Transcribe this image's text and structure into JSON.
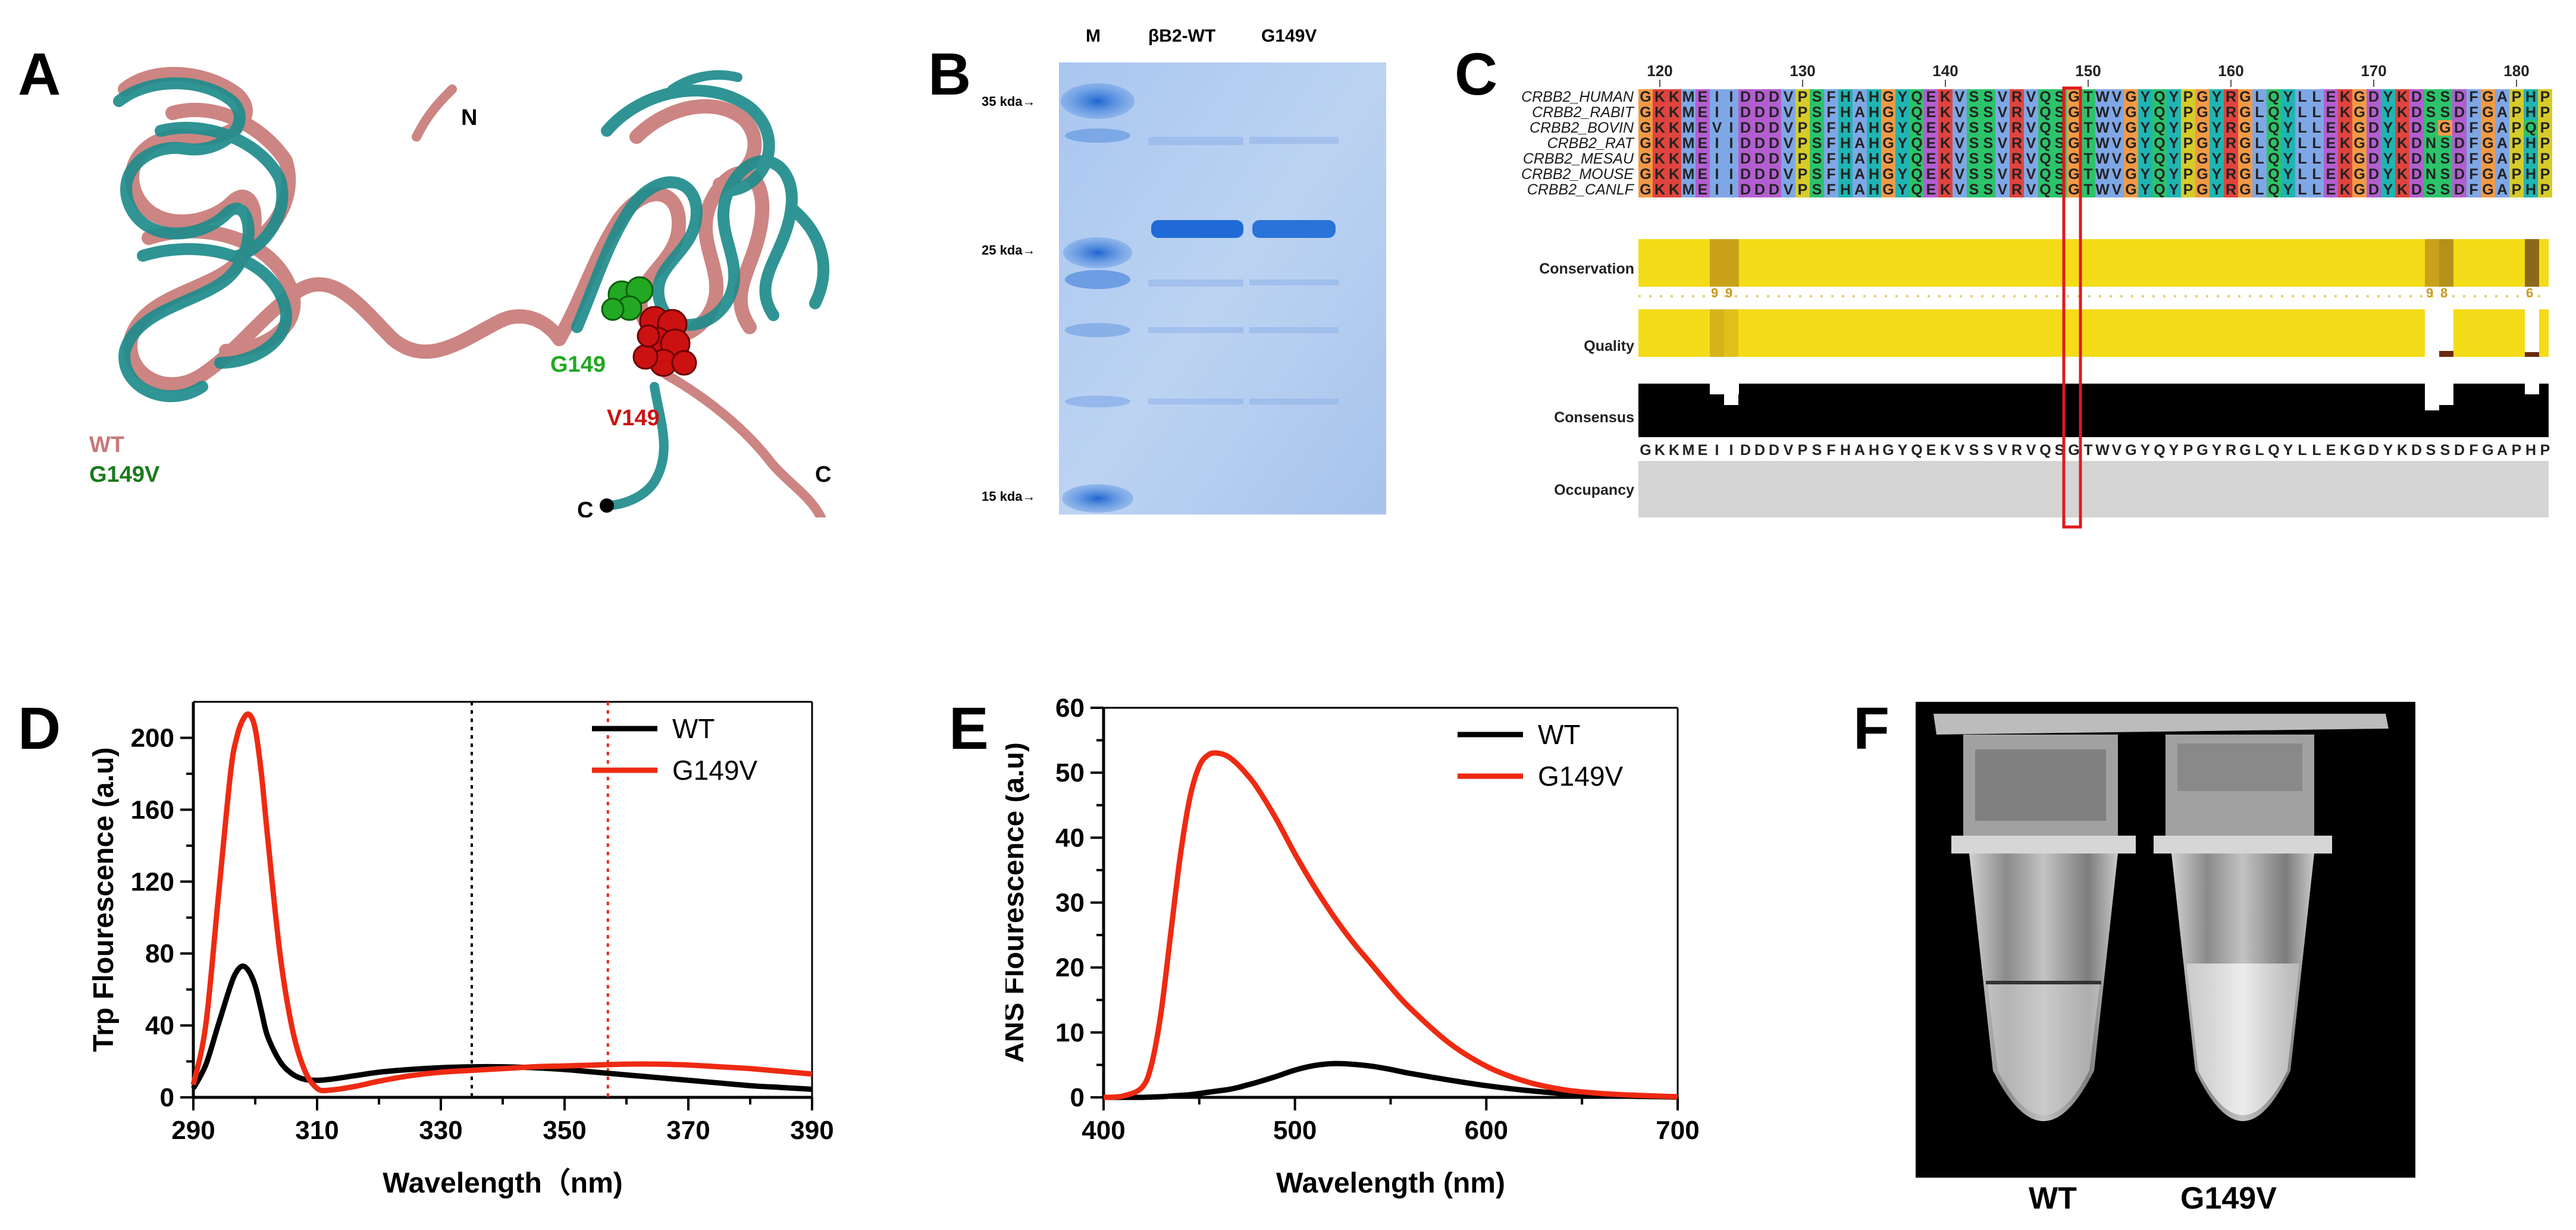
{
  "figure": {
    "panels": [
      "A",
      "B",
      "C",
      "D",
      "E",
      "F"
    ]
  },
  "panel_a": {
    "labels": {
      "n_term": "N",
      "c_term_1": "C",
      "c_term_2": "C",
      "g149": "G149",
      "v149": "V149"
    },
    "legend": [
      {
        "label": "WT",
        "color": "#c9797b"
      },
      {
        "label": "G149V",
        "color": "#1a7a1a"
      }
    ],
    "colors": {
      "wt_ribbon": "#cc8582",
      "mut_ribbon": "#1f8c8c",
      "g149_sphere": "#22a822",
      "v149_sphere": "#cc1111"
    }
  },
  "panel_b": {
    "lanes": [
      "M",
      "βB2-WT",
      "G149V"
    ],
    "markers": [
      "35 kda→",
      "25 kda→",
      "15 kda→"
    ],
    "colors": {
      "gel": "#b7cff0",
      "band": "#2f78d8"
    }
  },
  "panel_c": {
    "position_ticks": [
      "120",
      "130",
      "140",
      "150",
      "160",
      "170",
      "180"
    ],
    "sequences": [
      {
        "name": "CRBB2_HUMAN",
        "seq": "GKKMEIIDDDVPSFHAHGYQEKVSSVRVQSGTWVGYQYPGYRGLQYLLEKGDYKDSSDFGAPHP"
      },
      {
        "name": "CRBB2_RABIT",
        "seq": "GKKMEIIDDDVPSFHAHGYQEKVSSVRVQSGTWVGYQYPGYRGLQYLLEKGDYKDSSDFGAPHP"
      },
      {
        "name": "CRBB2_BOVIN",
        "seq": "GKKMEVIDDDVPSFHAHGYQEKVSSVRVQSGTWVGYQYPGYRGLQYLLEKGDYKDSGDFGAPQP"
      },
      {
        "name": "CRBB2_RAT",
        "seq": "GKKMEIIDDDVPSFHAHGYQEKVSSVRVQSGTWVGYQYPGYRGLQYLLEKGDYKDNSDFGAPHP"
      },
      {
        "name": "CRBB2_MESAU",
        "seq": "GKKMEIIDDDVPSFHAHGYQEKVSSVRVQSGTWVGYQYPGYRGLQYLLEKGDYKDNSDFGAPHP"
      },
      {
        "name": "CRBB2_MOUSE",
        "seq": "GKKMEIIDDDVPSFHAHGYQEKVSSVRVQSGTWVGYQYPGYRGLQYLLEKGDYKDNSDFGAPHP"
      },
      {
        "name": "CRBB2_CANLF",
        "seq": "GKKMEIIDDDVPSFHAHGYQEKVSSVRVQSGTWVGYQYPGYRGLQYLLEKGDYKDSSDFGAPHP"
      }
    ],
    "tracks": {
      "conservation": "Conservation",
      "quality": "Quality",
      "consensus": "Consensus",
      "occupancy": "Occupancy"
    },
    "conservation_scores": [
      "9",
      "9",
      "9",
      "8",
      "6"
    ],
    "consensus_seq": "GKKMEIIDDDVPSFHAHGYQEKVSSVRVQSGTWVGYQYPGYRGLQYLLEKGDYKDSSDFGAPHP",
    "highlight_position": "149"
  },
  "chart_data": [
    {
      "id": "D",
      "type": "line",
      "xlabel": "Wavelength（nm)",
      "ylabel": "Trp Flourescence (a.u)",
      "xlim": [
        290,
        390
      ],
      "ylim": [
        0,
        220
      ],
      "xticks": [
        290,
        310,
        330,
        350,
        370,
        390
      ],
      "yticks": [
        0,
        40,
        80,
        120,
        160,
        200
      ],
      "x": [
        290,
        292,
        294,
        296,
        297,
        298,
        299,
        300,
        301,
        302,
        304,
        306,
        308,
        310,
        312,
        316,
        320,
        325,
        330,
        335,
        340,
        345,
        350,
        355,
        360,
        365,
        370,
        375,
        380,
        385,
        390
      ],
      "series": [
        {
          "name": "WT",
          "color": "#000000",
          "values": [
            5,
            18,
            40,
            62,
            70,
            73,
            70,
            62,
            48,
            34,
            20,
            13,
            10,
            9.5,
            10,
            12,
            14,
            15.5,
            16.5,
            17,
            17,
            16.5,
            15.5,
            14,
            12.5,
            11,
            9.5,
            8,
            6.5,
            5.5,
            4.5
          ]
        },
        {
          "name": "G149V",
          "color": "#ee2a12",
          "values": [
            7,
            40,
            110,
            180,
            200,
            210,
            213,
            205,
            180,
            145,
            80,
            38,
            15,
            5,
            4,
            6,
            9,
            12,
            14,
            15,
            16,
            17,
            17.5,
            18,
            18.5,
            18.5,
            18,
            17,
            16,
            14.5,
            13
          ]
        }
      ],
      "vlines": [
        {
          "x": 335,
          "color": "#000000",
          "style": "dotted"
        },
        {
          "x": 357,
          "color": "#ee2a12",
          "style": "dotted"
        }
      ],
      "legend_position": "top-right"
    },
    {
      "id": "E",
      "type": "line",
      "xlabel": "Wavelength (nm)",
      "ylabel": "ANS Flourescence (a.u)",
      "xlim": [
        400,
        700
      ],
      "ylim": [
        0,
        60
      ],
      "xticks": [
        400,
        500,
        600,
        700
      ],
      "yticks": [
        0,
        10,
        20,
        30,
        40,
        50,
        60
      ],
      "x": [
        400,
        410,
        420,
        425,
        430,
        435,
        440,
        445,
        450,
        455,
        460,
        465,
        470,
        475,
        480,
        490,
        500,
        510,
        520,
        530,
        540,
        550,
        560,
        580,
        600,
        620,
        640,
        660,
        680,
        700
      ],
      "series": [
        {
          "name": "WT",
          "color": "#000000",
          "values": [
            0,
            0,
            0,
            0.05,
            0.1,
            0.2,
            0.3,
            0.4,
            0.6,
            0.8,
            1.0,
            1.2,
            1.5,
            1.9,
            2.3,
            3.2,
            4.2,
            4.9,
            5.2,
            5.1,
            4.8,
            4.3,
            3.7,
            2.7,
            1.8,
            1.1,
            0.6,
            0.3,
            0.15,
            0.05
          ]
        },
        {
          "name": "G149V",
          "color": "#ee2a12",
          "values": [
            0,
            0.2,
            1.5,
            5,
            13,
            25,
            37,
            46,
            51,
            52.8,
            53,
            52.5,
            51.3,
            49.7,
            47.8,
            43,
            37.5,
            32.5,
            28,
            24,
            20.5,
            17,
            13.8,
            8.5,
            4.8,
            2.5,
            1.2,
            0.6,
            0.3,
            0.1
          ]
        }
      ],
      "legend_position": "top-right"
    }
  ],
  "panel_f": {
    "tube_labels": [
      "WT",
      "G149V"
    ]
  }
}
